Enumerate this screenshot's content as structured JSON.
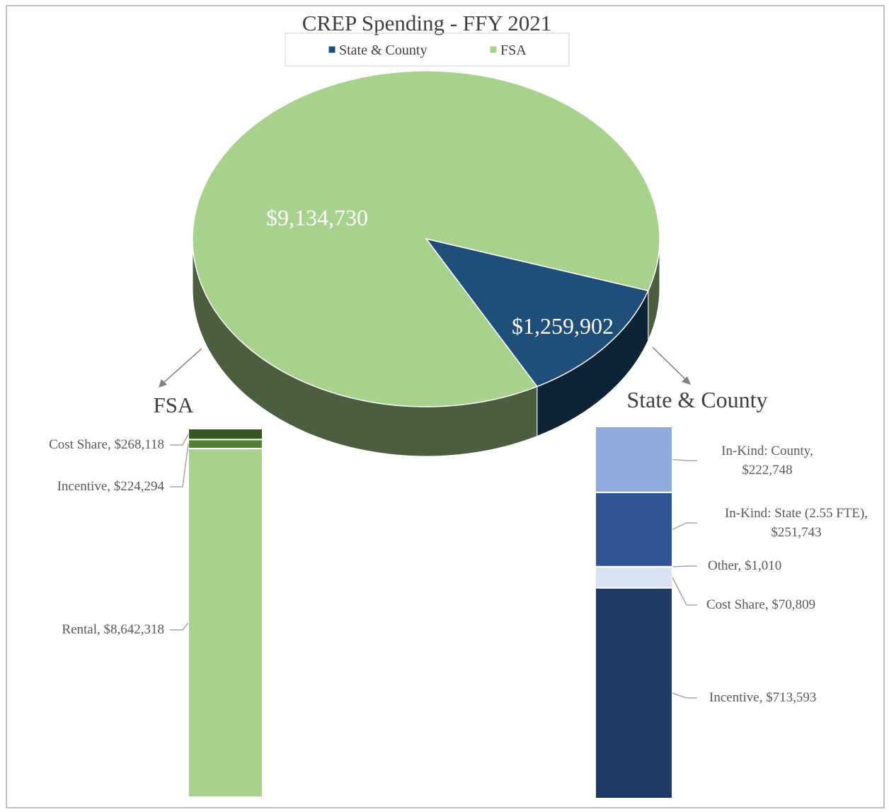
{
  "chart_data": [
    {
      "type": "pie",
      "title": "CREP Spending  - FFY 2021",
      "categories": [
        "State & County",
        "FSA"
      ],
      "values": [
        1259902,
        9134730
      ],
      "value_labels": [
        "$1,259,902",
        "$9,134,730"
      ],
      "colors": [
        "#1f4e79",
        "#a9d18e"
      ],
      "legend": "top"
    },
    {
      "type": "stack",
      "title": "FSA",
      "series": [
        {
          "color": "#a9d18e",
          "values": [
            8642318
          ],
          "value_labels": [
            "Rental, $8,642,318"
          ]
        },
        {
          "color": "#548235",
          "values": [
            224294
          ],
          "value_labels": [
            "Incentive, $224,294"
          ]
        },
        {
          "color": "#375623",
          "values": [
            268118
          ],
          "value_labels": [
            "Cost Share, $268,118"
          ]
        }
      ]
    },
    {
      "type": "stack",
      "title": "State & County",
      "series": [
        {
          "color": "#203864",
          "values": [
            713593
          ],
          "value_labels": [
            "Incentive, $713,593"
          ]
        },
        {
          "color": "#dae3f3",
          "values": [
            70809
          ],
          "value_labels": [
            "Cost Share, $70,809"
          ]
        },
        {
          "color": "#b4c7e7",
          "values": [
            1010
          ],
          "value_labels": [
            "Other, $1,010"
          ]
        },
        {
          "color": "#2f5597",
          "values": [
            251743
          ],
          "value_labels": [
            "In-Kind: State (2.55 FTE), $251,743"
          ]
        },
        {
          "color": "#8faadc",
          "values": [
            222748
          ],
          "value_labels": [
            "In-Kind: County, $222,748"
          ]
        }
      ]
    }
  ]
}
